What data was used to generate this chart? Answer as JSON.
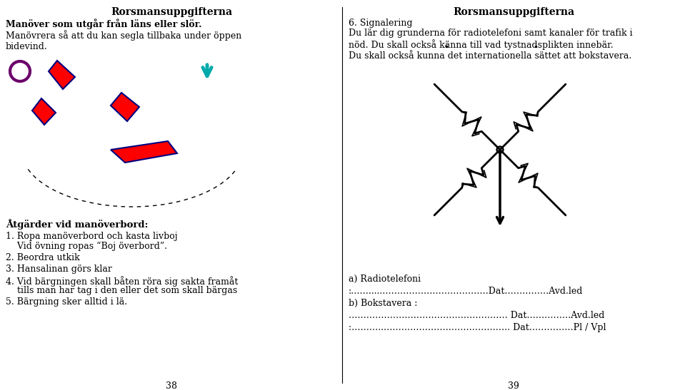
{
  "bg_color": "#ffffff",
  "left_title": "Rorsmansuppgifterna",
  "left_subtitle": "Manöver som utgår från läns eller slör.",
  "left_body": "Manövrera så att du kan segla tillbaka under öppen\nbidevind.",
  "left_section_title": "Åtgärder vid manöverbord:",
  "left_items": [
    "1. Ropa manöverbord och kasta livboj\n    Vid övning ropas “Boj överbord”.",
    "2. Beordra utkik",
    "3. Hansalinan görs klar",
    "4. Vid bärgningen skall båten röra sig sakta framåt\n    tills man har tag i den eller det som skall bärgas",
    "5. Bärgning sker alltid i lä."
  ],
  "left_page": "38",
  "right_title": "Rorsmansuppgifterna",
  "right_section": "6. Signalering",
  "right_body": "Du lär dig grunderna för radiotelefoni samt kanaler för trafik i\nnöd. Du skall också känna till vad tystnadsplikten innebär.\nDu skall också kunna det internationella sättet att bokstavera.",
  "right_bottom_lines": [
    "a) Radiotelefoni",
    ":…….....………………………………Dat……………Avd.led",
    "b) Bokstavera :",
    "……………………………………………… Dat……………Avd.led",
    ":………..……………………………………. Dat……………Pl / Vpl"
  ],
  "right_page": "39"
}
